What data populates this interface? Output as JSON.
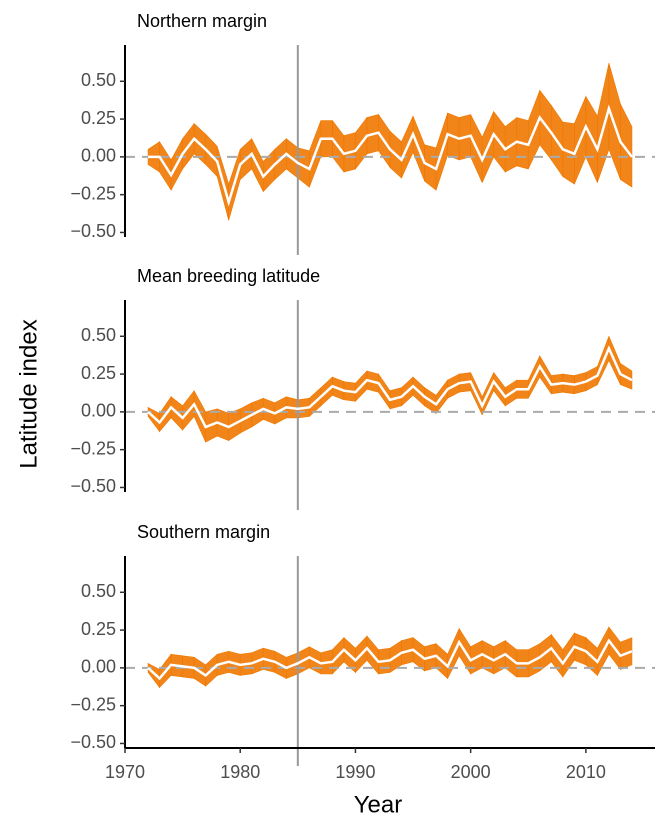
{
  "chart_data": [
    {
      "type": "band_line",
      "title": "Northern margin",
      "x": [
        1972,
        1973,
        1974,
        1975,
        1976,
        1977,
        1978,
        1979,
        1980,
        1981,
        1982,
        1983,
        1984,
        1985,
        1986,
        1987,
        1988,
        1989,
        1990,
        1991,
        1992,
        1993,
        1994,
        1995,
        1996,
        1997,
        1998,
        1999,
        2000,
        2001,
        2002,
        2003,
        2004,
        2005,
        2006,
        2007,
        2008,
        2009,
        2010,
        2011,
        2012,
        2013,
        2014
      ],
      "values": [
        0.0,
        0.0,
        -0.12,
        0.02,
        0.12,
        0.05,
        -0.03,
        -0.3,
        -0.05,
        0.02,
        -0.13,
        -0.05,
        0.02,
        -0.04,
        -0.08,
        0.12,
        0.12,
        0.02,
        0.04,
        0.14,
        0.16,
        0.05,
        -0.02,
        0.15,
        -0.04,
        -0.08,
        0.15,
        0.12,
        0.14,
        -0.02,
        0.15,
        0.05,
        0.1,
        0.08,
        0.26,
        0.16,
        0.05,
        0.02,
        0.2,
        0.05,
        0.32,
        0.1,
        0.0
      ],
      "lower": [
        -0.05,
        -0.1,
        -0.22,
        -0.08,
        0.02,
        -0.05,
        -0.13,
        -0.42,
        -0.15,
        -0.08,
        -0.23,
        -0.15,
        -0.08,
        -0.14,
        -0.2,
        0.0,
        0.0,
        -0.1,
        -0.08,
        0.02,
        0.04,
        -0.07,
        -0.14,
        0.03,
        -0.16,
        -0.22,
        0.01,
        -0.02,
        0.0,
        -0.17,
        0.0,
        -0.1,
        -0.06,
        -0.08,
        0.08,
        -0.02,
        -0.13,
        -0.18,
        0.0,
        -0.17,
        0.05,
        -0.15,
        -0.2
      ],
      "upper": [
        0.05,
        0.1,
        -0.02,
        0.12,
        0.22,
        0.15,
        0.07,
        -0.18,
        0.05,
        0.12,
        -0.03,
        0.05,
        0.12,
        0.06,
        0.04,
        0.24,
        0.24,
        0.14,
        0.16,
        0.26,
        0.28,
        0.17,
        0.1,
        0.27,
        0.08,
        0.06,
        0.29,
        0.26,
        0.28,
        0.13,
        0.3,
        0.2,
        0.26,
        0.24,
        0.44,
        0.34,
        0.23,
        0.22,
        0.4,
        0.27,
        0.62,
        0.35,
        0.2
      ],
      "band_color": "#f07800",
      "line_color": "#ffffff",
      "xlim": [
        1970,
        2016
      ],
      "ylim": [
        -0.53,
        0.74
      ],
      "yticks": [
        {
          "value": 0.5,
          "label": "0.50"
        },
        {
          "value": 0.25,
          "label": "0.25"
        },
        {
          "value": 0,
          "label": "0.00"
        },
        {
          "value": -0.25,
          "label": "−0.25"
        },
        {
          "value": -0.5,
          "label": "−0.50"
        }
      ],
      "vline": 1985,
      "hline": 0
    },
    {
      "type": "band_line",
      "title": "Mean breeding latitude",
      "ylabel": "Latitude index",
      "x": [
        1972,
        1973,
        1974,
        1975,
        1976,
        1977,
        1978,
        1979,
        1980,
        1981,
        1982,
        1983,
        1984,
        1985,
        1986,
        1987,
        1988,
        1989,
        1990,
        1991,
        1992,
        1993,
        1994,
        1995,
        1996,
        1997,
        1998,
        1999,
        2000,
        2001,
        2002,
        2003,
        2004,
        2005,
        2006,
        2007,
        2008,
        2009,
        2010,
        2011,
        2012,
        2013,
        2014
      ],
      "values": [
        0.0,
        -0.07,
        0.03,
        -0.04,
        0.05,
        -0.1,
        -0.07,
        -0.1,
        -0.06,
        -0.02,
        0.02,
        -0.01,
        0.03,
        0.02,
        0.03,
        0.1,
        0.17,
        0.14,
        0.13,
        0.21,
        0.19,
        0.08,
        0.1,
        0.17,
        0.1,
        0.05,
        0.15,
        0.19,
        0.2,
        0.04,
        0.2,
        0.1,
        0.15,
        0.15,
        0.3,
        0.18,
        0.19,
        0.18,
        0.2,
        0.24,
        0.42,
        0.25,
        0.21
      ],
      "lower": [
        -0.03,
        -0.13,
        -0.04,
        -0.12,
        -0.03,
        -0.2,
        -0.16,
        -0.19,
        -0.14,
        -0.1,
        -0.05,
        -0.08,
        -0.04,
        -0.04,
        -0.03,
        0.04,
        0.11,
        0.08,
        0.07,
        0.15,
        0.13,
        0.02,
        0.04,
        0.11,
        0.04,
        -0.01,
        0.09,
        0.13,
        0.14,
        -0.02,
        0.14,
        0.04,
        0.09,
        0.09,
        0.23,
        0.12,
        0.13,
        0.12,
        0.14,
        0.18,
        0.34,
        0.18,
        0.15
      ],
      "upper": [
        0.03,
        -0.01,
        0.1,
        0.04,
        0.14,
        0.0,
        0.02,
        -0.01,
        0.02,
        0.06,
        0.09,
        0.06,
        0.1,
        0.08,
        0.09,
        0.16,
        0.23,
        0.2,
        0.19,
        0.27,
        0.25,
        0.14,
        0.16,
        0.23,
        0.16,
        0.11,
        0.21,
        0.25,
        0.26,
        0.1,
        0.26,
        0.16,
        0.21,
        0.21,
        0.37,
        0.24,
        0.25,
        0.24,
        0.26,
        0.3,
        0.5,
        0.32,
        0.27
      ],
      "band_color": "#f07800",
      "line_color": "#ffffff",
      "xlim": [
        1970,
        2016
      ],
      "ylim": [
        -0.53,
        0.74
      ],
      "yticks": [
        {
          "value": 0.5,
          "label": "0.50"
        },
        {
          "value": 0.25,
          "label": "0.25"
        },
        {
          "value": 0,
          "label": "0.00"
        },
        {
          "value": -0.25,
          "label": "−0.25"
        },
        {
          "value": -0.5,
          "label": "−0.50"
        }
      ],
      "vline": 1985,
      "hline": 0
    },
    {
      "type": "band_line",
      "title": "Southern margin",
      "xlabel": "Year",
      "x": [
        1972,
        1973,
        1974,
        1975,
        1976,
        1977,
        1978,
        1979,
        1980,
        1981,
        1982,
        1983,
        1984,
        1985,
        1986,
        1987,
        1988,
        1989,
        1990,
        1991,
        1992,
        1993,
        1994,
        1995,
        1996,
        1997,
        1998,
        1999,
        2000,
        2001,
        2002,
        2003,
        2004,
        2005,
        2006,
        2007,
        2008,
        2009,
        2010,
        2011,
        2012,
        2013,
        2014
      ],
      "values": [
        0.0,
        -0.07,
        0.02,
        0.01,
        0.0,
        -0.05,
        0.02,
        0.04,
        0.02,
        0.03,
        0.06,
        0.04,
        0.0,
        0.03,
        0.07,
        0.03,
        0.04,
        0.12,
        0.05,
        0.13,
        0.04,
        0.05,
        0.1,
        0.12,
        0.06,
        0.08,
        0.01,
        0.17,
        0.05,
        0.09,
        0.05,
        0.09,
        0.03,
        0.03,
        0.07,
        0.13,
        0.03,
        0.14,
        0.11,
        0.04,
        0.18,
        0.08,
        0.11
      ],
      "lower": [
        -0.03,
        -0.13,
        -0.05,
        -0.06,
        -0.07,
        -0.12,
        -0.05,
        -0.03,
        -0.05,
        -0.04,
        -0.01,
        -0.03,
        -0.07,
        -0.04,
        0.0,
        -0.04,
        -0.04,
        0.04,
        -0.03,
        0.05,
        -0.04,
        -0.03,
        0.02,
        0.04,
        -0.02,
        0.0,
        -0.07,
        0.08,
        -0.04,
        0.0,
        -0.04,
        0.0,
        -0.06,
        -0.06,
        -0.02,
        0.04,
        -0.06,
        0.05,
        0.02,
        -0.05,
        0.09,
        -0.01,
        0.02
      ],
      "upper": [
        0.03,
        -0.01,
        0.09,
        0.08,
        0.07,
        0.02,
        0.09,
        0.11,
        0.09,
        0.1,
        0.13,
        0.11,
        0.07,
        0.1,
        0.14,
        0.1,
        0.12,
        0.2,
        0.13,
        0.21,
        0.12,
        0.13,
        0.18,
        0.2,
        0.14,
        0.16,
        0.09,
        0.26,
        0.14,
        0.18,
        0.14,
        0.18,
        0.12,
        0.12,
        0.16,
        0.22,
        0.12,
        0.23,
        0.2,
        0.13,
        0.27,
        0.17,
        0.2
      ],
      "band_color": "#f07800",
      "line_color": "#ffffff",
      "xlim": [
        1970,
        2016
      ],
      "ylim": [
        -0.53,
        0.74
      ],
      "xticks": [
        1970,
        1980,
        1990,
        2000,
        2010
      ],
      "yticks": [
        {
          "value": 0.5,
          "label": "0.50"
        },
        {
          "value": 0.25,
          "label": "0.25"
        },
        {
          "value": 0,
          "label": "0.00"
        },
        {
          "value": -0.25,
          "label": "−0.25"
        },
        {
          "value": -0.5,
          "label": "−0.50"
        }
      ],
      "vline": 1985,
      "hline": 0
    }
  ]
}
